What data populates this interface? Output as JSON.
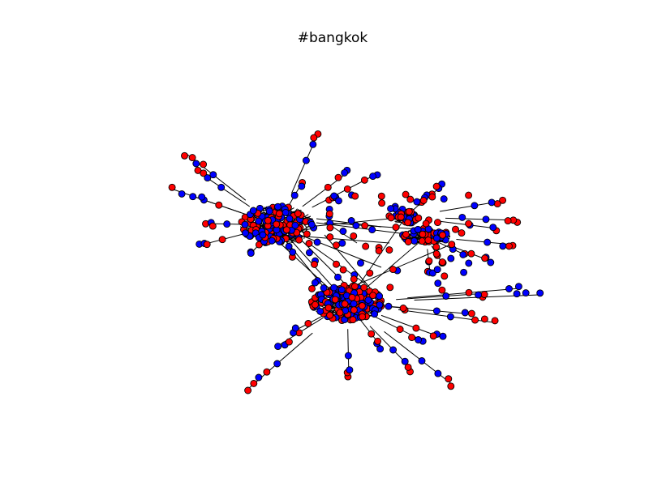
{
  "title": "#bangkok",
  "colors": {
    "background": "#ffffff",
    "node_red": "#ff0000",
    "node_blue": "#0000ff",
    "edge": "#000000"
  }
}
